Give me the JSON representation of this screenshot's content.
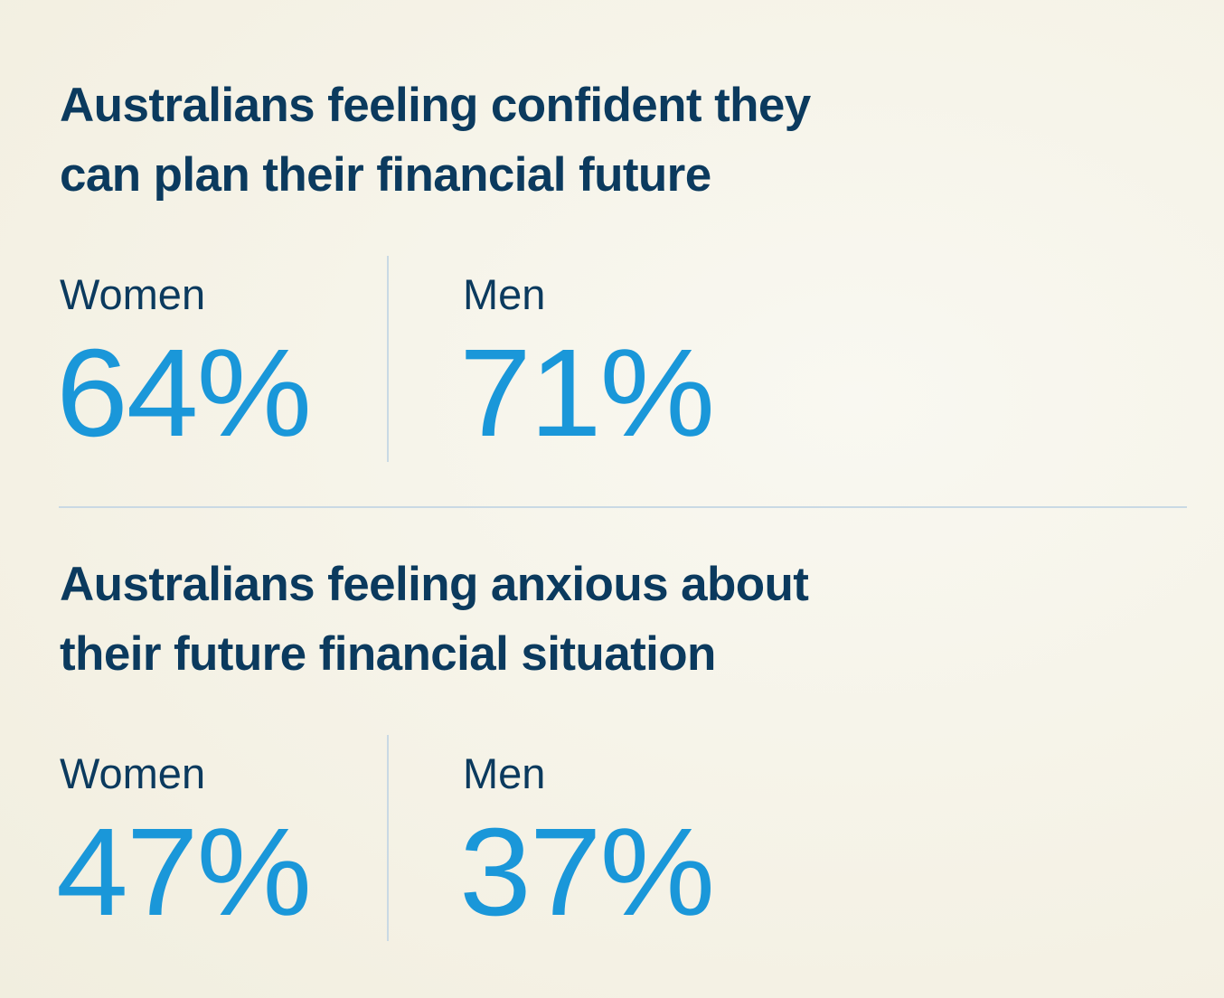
{
  "sections": [
    {
      "title_lines": [
        "Australians feeling confident they",
        "can plan their financial future"
      ],
      "stats": [
        {
          "label": "Women",
          "value": "64%"
        },
        {
          "label": "Men",
          "value": "71%"
        }
      ]
    },
    {
      "title_lines": [
        "Australians feeling anxious about",
        "their future financial situation"
      ],
      "stats": [
        {
          "label": "Women",
          "value": "47%"
        },
        {
          "label": "Men",
          "value": "37%"
        }
      ]
    }
  ],
  "colors": {
    "heading": "#0b3a5e",
    "value": "#1a97d9",
    "divider": "#c9d9e4",
    "background": "#f6f4e9"
  }
}
